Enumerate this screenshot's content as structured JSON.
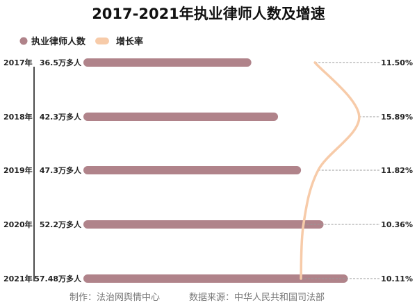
{
  "chart_data": {
    "type": "bar",
    "title": "2017-2021年执业律师人数及增速",
    "orientation": "horizontal",
    "categories": [
      "2017年",
      "2018年",
      "2019年",
      "2020年",
      "2021年"
    ],
    "series": [
      {
        "name": "执业律师人数",
        "type": "bar",
        "values": [
          36.5,
          42.3,
          47.3,
          52.2,
          57.48
        ],
        "labels": [
          "36.5万多人",
          "42.3万多人",
          "47.3万多人",
          "52.2万多人",
          "57.48万多人"
        ],
        "color": "#b0838a"
      },
      {
        "name": "增长率",
        "type": "line",
        "values": [
          11.5,
          15.89,
          11.82,
          10.36,
          10.11
        ],
        "labels": [
          "11.50%",
          "15.89%",
          "11.82%",
          "10.36%",
          "10.11%"
        ],
        "color": "#f7cba9"
      }
    ],
    "legend": "top-left",
    "grid": false
  },
  "footer": {
    "maker": "制作：法治网舆情中心",
    "source": "数据来源：中华人民共和国司法部"
  }
}
